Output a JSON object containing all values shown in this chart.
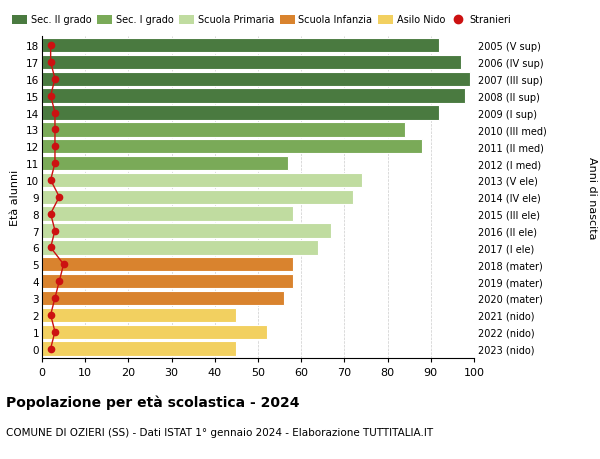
{
  "ages": [
    18,
    17,
    16,
    15,
    14,
    13,
    12,
    11,
    10,
    9,
    8,
    7,
    6,
    5,
    4,
    3,
    2,
    1,
    0
  ],
  "right_labels": [
    "2005 (V sup)",
    "2006 (IV sup)",
    "2007 (III sup)",
    "2008 (II sup)",
    "2009 (I sup)",
    "2010 (III med)",
    "2011 (II med)",
    "2012 (I med)",
    "2013 (V ele)",
    "2014 (IV ele)",
    "2015 (III ele)",
    "2016 (II ele)",
    "2017 (I ele)",
    "2018 (mater)",
    "2019 (mater)",
    "2020 (mater)",
    "2021 (nido)",
    "2022 (nido)",
    "2023 (nido)"
  ],
  "bar_values": [
    92,
    97,
    99,
    98,
    92,
    84,
    88,
    57,
    74,
    72,
    58,
    67,
    64,
    58,
    58,
    56,
    45,
    52,
    45
  ],
  "bar_colors": [
    "#4a7a40",
    "#4a7a40",
    "#4a7a40",
    "#4a7a40",
    "#4a7a40",
    "#7aaa58",
    "#7aaa58",
    "#7aaa58",
    "#c0dca0",
    "#c0dca0",
    "#c0dca0",
    "#c0dca0",
    "#c0dca0",
    "#d9832e",
    "#d9832e",
    "#d9832e",
    "#f2d060",
    "#f2d060",
    "#f2d060"
  ],
  "stranieri_values": [
    2,
    2,
    3,
    2,
    3,
    3,
    3,
    3,
    2,
    4,
    2,
    3,
    2,
    5,
    4,
    3,
    2,
    3,
    2
  ],
  "stranieri_color": "#cc1111",
  "title_bold": "Popolazione per età scolastica - 2024",
  "subtitle": "COMUNE DI OZIERI (SS) - Dati ISTAT 1° gennaio 2024 - Elaborazione TUTTITALIA.IT",
  "ylabel": "Età alunni",
  "right_ylabel": "Anni di nascita",
  "xlim": [
    0,
    100
  ],
  "xticks": [
    0,
    10,
    20,
    30,
    40,
    50,
    60,
    70,
    80,
    90,
    100
  ],
  "legend_entries": [
    {
      "label": "Sec. II grado",
      "color": "#4a7a40",
      "type": "bar"
    },
    {
      "label": "Sec. I grado",
      "color": "#7aaa58",
      "type": "bar"
    },
    {
      "label": "Scuola Primaria",
      "color": "#c0dca0",
      "type": "bar"
    },
    {
      "label": "Scuola Infanzia",
      "color": "#d9832e",
      "type": "bar"
    },
    {
      "label": "Asilo Nido",
      "color": "#f2d060",
      "type": "bar"
    },
    {
      "label": "Stranieri",
      "color": "#cc1111",
      "type": "dot"
    }
  ],
  "bar_height": 0.85,
  "bg_color": "#ffffff",
  "grid_color": "#cccccc"
}
